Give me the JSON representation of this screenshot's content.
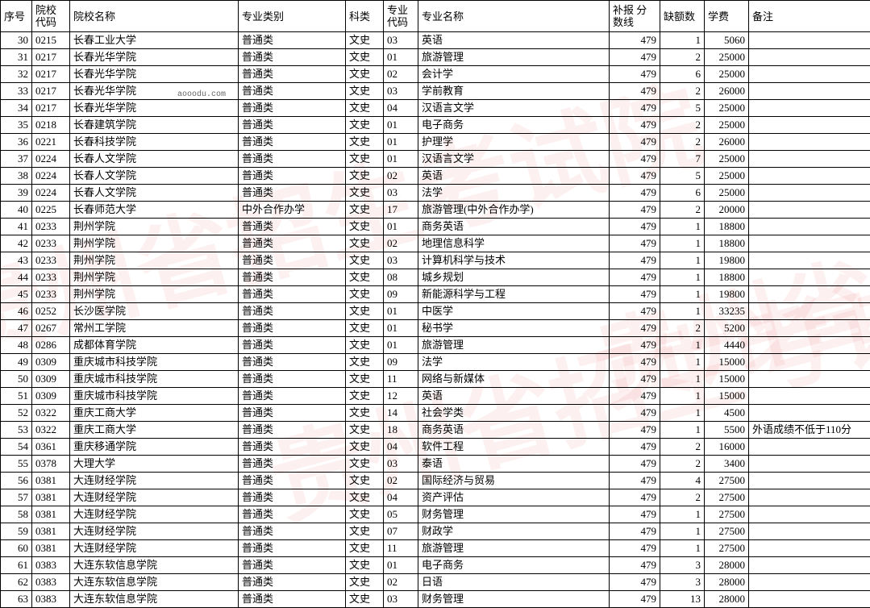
{
  "watermarks": {
    "text": "贵州省招生考试院",
    "small": "aooodu.com"
  },
  "table": {
    "columns": [
      {
        "key": "seq",
        "label": "序号",
        "class": "c-seq"
      },
      {
        "key": "code",
        "label": "院校\n代码",
        "class": "c-code"
      },
      {
        "key": "name",
        "label": "院校名称",
        "class": "c-name"
      },
      {
        "key": "type",
        "label": "专业类别",
        "class": "c-type"
      },
      {
        "key": "cat",
        "label": "科类",
        "class": "c-cat"
      },
      {
        "key": "mcode",
        "label": "专业\n代码",
        "class": "c-mcode"
      },
      {
        "key": "major",
        "label": "专业名称",
        "class": "c-major"
      },
      {
        "key": "score",
        "label": "补报\n分数线",
        "class": "c-score"
      },
      {
        "key": "vac",
        "label": "缺额数",
        "class": "c-vac"
      },
      {
        "key": "fee",
        "label": "学费",
        "class": "c-fee"
      },
      {
        "key": "note",
        "label": "备注",
        "class": "c-note"
      }
    ],
    "rows": [
      [
        "30",
        "0215",
        "长春工业大学",
        "普通类",
        "文史",
        "03",
        "英语",
        "479",
        "1",
        "5060",
        ""
      ],
      [
        "31",
        "0217",
        "长春光华学院",
        "普通类",
        "文史",
        "01",
        "旅游管理",
        "479",
        "2",
        "25000",
        ""
      ],
      [
        "32",
        "0217",
        "长春光华学院",
        "普通类",
        "文史",
        "02",
        "会计学",
        "479",
        "6",
        "25000",
        ""
      ],
      [
        "33",
        "0217",
        "长春光华学院",
        "普通类",
        "文史",
        "03",
        "学前教育",
        "479",
        "2",
        "26000",
        ""
      ],
      [
        "34",
        "0217",
        "长春光华学院",
        "普通类",
        "文史",
        "04",
        "汉语言文学",
        "479",
        "5",
        "25000",
        ""
      ],
      [
        "35",
        "0218",
        "长春建筑学院",
        "普通类",
        "文史",
        "01",
        "电子商务",
        "479",
        "2",
        "25000",
        ""
      ],
      [
        "36",
        "0221",
        "长春科技学院",
        "普通类",
        "文史",
        "01",
        "护理学",
        "479",
        "2",
        "26000",
        ""
      ],
      [
        "37",
        "0224",
        "长春人文学院",
        "普通类",
        "文史",
        "01",
        "汉语言文学",
        "479",
        "7",
        "25000",
        ""
      ],
      [
        "38",
        "0224",
        "长春人文学院",
        "普通类",
        "文史",
        "02",
        "英语",
        "479",
        "5",
        "25000",
        ""
      ],
      [
        "39",
        "0224",
        "长春人文学院",
        "普通类",
        "文史",
        "03",
        "法学",
        "479",
        "6",
        "25000",
        ""
      ],
      [
        "40",
        "0225",
        "长春师范大学",
        "中外合作办学",
        "文史",
        "17",
        "旅游管理(中外合作办学)",
        "479",
        "2",
        "20000",
        ""
      ],
      [
        "41",
        "0233",
        "荆州学院",
        "普通类",
        "文史",
        "01",
        "商务英语",
        "479",
        "1",
        "18800",
        ""
      ],
      [
        "42",
        "0233",
        "荆州学院",
        "普通类",
        "文史",
        "02",
        "地理信息科学",
        "479",
        "1",
        "18800",
        ""
      ],
      [
        "43",
        "0233",
        "荆州学院",
        "普通类",
        "文史",
        "03",
        "计算机科学与技术",
        "479",
        "1",
        "19800",
        ""
      ],
      [
        "44",
        "0233",
        "荆州学院",
        "普通类",
        "文史",
        "08",
        "城乡规划",
        "479",
        "1",
        "18800",
        ""
      ],
      [
        "45",
        "0233",
        "荆州学院",
        "普通类",
        "文史",
        "09",
        "新能源科学与工程",
        "479",
        "1",
        "19800",
        ""
      ],
      [
        "46",
        "0252",
        "长沙医学院",
        "普通类",
        "文史",
        "01",
        "中医学",
        "479",
        "1",
        "33235",
        ""
      ],
      [
        "47",
        "0267",
        "常州工学院",
        "普通类",
        "文史",
        "01",
        "秘书学",
        "479",
        "2",
        "5200",
        ""
      ],
      [
        "48",
        "0286",
        "成都体育学院",
        "普通类",
        "文史",
        "01",
        "旅游管理",
        "479",
        "1",
        "4440",
        ""
      ],
      [
        "49",
        "0309",
        "重庆城市科技学院",
        "普通类",
        "文史",
        "09",
        "法学",
        "479",
        "1",
        "15000",
        ""
      ],
      [
        "50",
        "0309",
        "重庆城市科技学院",
        "普通类",
        "文史",
        "11",
        "网络与新媒体",
        "479",
        "1",
        "15000",
        ""
      ],
      [
        "51",
        "0309",
        "重庆城市科技学院",
        "普通类",
        "文史",
        "12",
        "英语",
        "479",
        "1",
        "15000",
        ""
      ],
      [
        "52",
        "0322",
        "重庆工商大学",
        "普通类",
        "文史",
        "14",
        "社会学类",
        "479",
        "1",
        "4500",
        ""
      ],
      [
        "53",
        "0322",
        "重庆工商大学",
        "普通类",
        "文史",
        "18",
        "商务英语",
        "479",
        "1",
        "5500",
        "外语成绩不低于110分"
      ],
      [
        "54",
        "0361",
        "重庆移通学院",
        "普通类",
        "文史",
        "04",
        "软件工程",
        "479",
        "2",
        "16000",
        ""
      ],
      [
        "55",
        "0378",
        "大理大学",
        "普通类",
        "文史",
        "03",
        "泰语",
        "479",
        "2",
        "3400",
        ""
      ],
      [
        "56",
        "0381",
        "大连财经学院",
        "普通类",
        "文史",
        "02",
        "国际经济与贸易",
        "479",
        "4",
        "27500",
        ""
      ],
      [
        "57",
        "0381",
        "大连财经学院",
        "普通类",
        "文史",
        "04",
        "资产评估",
        "479",
        "2",
        "27500",
        ""
      ],
      [
        "58",
        "0381",
        "大连财经学院",
        "普通类",
        "文史",
        "05",
        "财务管理",
        "479",
        "1",
        "27500",
        ""
      ],
      [
        "59",
        "0381",
        "大连财经学院",
        "普通类",
        "文史",
        "07",
        "财政学",
        "479",
        "1",
        "27500",
        ""
      ],
      [
        "60",
        "0381",
        "大连财经学院",
        "普通类",
        "文史",
        "11",
        "旅游管理",
        "479",
        "1",
        "27500",
        ""
      ],
      [
        "61",
        "0383",
        "大连东软信息学院",
        "普通类",
        "文史",
        "01",
        "电子商务",
        "479",
        "3",
        "28000",
        ""
      ],
      [
        "62",
        "0383",
        "大连东软信息学院",
        "普通类",
        "文史",
        "02",
        "日语",
        "479",
        "3",
        "28000",
        ""
      ],
      [
        "63",
        "0383",
        "大连东软信息学院",
        "普通类",
        "文史",
        "03",
        "财务管理",
        "479",
        "13",
        "28000",
        ""
      ]
    ]
  }
}
